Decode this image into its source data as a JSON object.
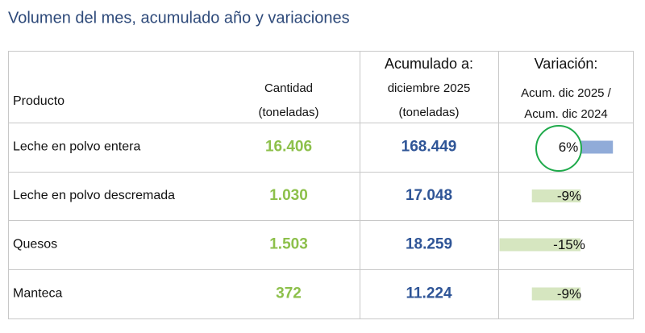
{
  "title": "Volumen del mes, acumulado año y variaciones",
  "table": {
    "header": {
      "producto": "Producto",
      "cantidad": [
        "Cantidad",
        "(toneladas)"
      ],
      "acumulado": [
        "Acumulado a:",
        "diciembre 2025",
        "(toneladas)"
      ],
      "variacion": [
        "Variación:",
        "Acum. dic 2025 /",
        "Acum. dic 2024"
      ]
    },
    "rows": [
      {
        "producto": "Leche en polvo entera",
        "cantidad": "16.406",
        "acumulado": "168.449",
        "variacion": {
          "value": 6,
          "label": "6%"
        }
      },
      {
        "producto": "Leche en polvo descremada",
        "cantidad": "1.030",
        "acumulado": "17.048",
        "variacion": {
          "value": -9,
          "label": "-9%"
        }
      },
      {
        "producto": "Quesos",
        "cantidad": "1.503",
        "acumulado": "18.259",
        "variacion": {
          "value": -15,
          "label": "-15%"
        }
      },
      {
        "producto": "Manteca",
        "cantidad": "372",
        "acumulado": "11.224",
        "variacion": {
          "value": -9,
          "label": "-9%"
        }
      }
    ]
  }
}
